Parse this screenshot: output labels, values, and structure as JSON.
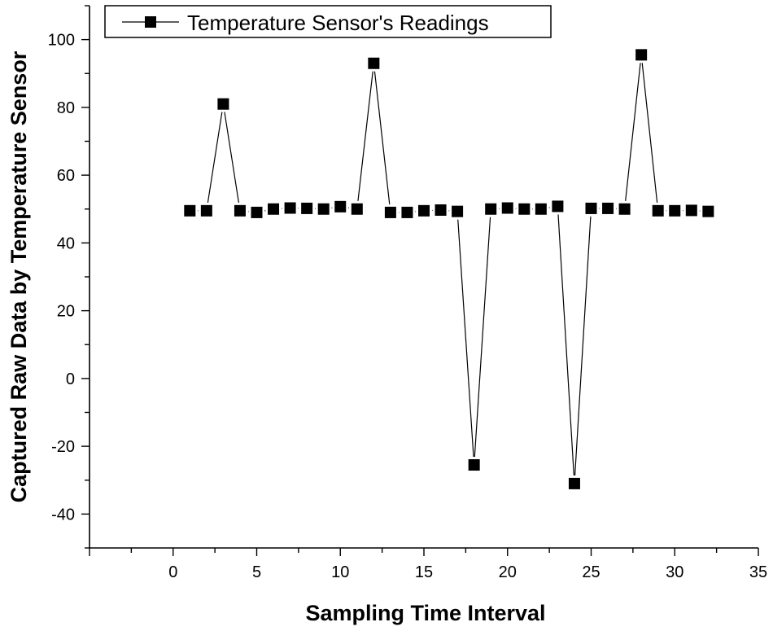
{
  "chart_data": {
    "type": "line",
    "title": "",
    "xlabel": "Sampling Time Interval",
    "ylabel": "Captured Raw Data by Temperature Sensor",
    "xlim": [
      -5,
      35
    ],
    "ylim": [
      -50,
      110
    ],
    "xticks": [
      0,
      5,
      10,
      15,
      20,
      25,
      30,
      35
    ],
    "yticks": [
      -40,
      -20,
      0,
      20,
      40,
      60,
      80,
      100
    ],
    "xtick_labels": [
      "0",
      "5",
      "10",
      "15",
      "20",
      "25",
      "30",
      "35"
    ],
    "ytick_labels": [
      "-40",
      "-20",
      "0",
      "20",
      "40",
      "60",
      "80",
      "100"
    ],
    "grid": false,
    "legend_position": "top-left",
    "marker": "square",
    "color": "#000000",
    "series": [
      {
        "name": "Temperature Sensor's Readings",
        "x": [
          1,
          2,
          3,
          4,
          5,
          6,
          7,
          8,
          9,
          10,
          11,
          12,
          13,
          14,
          15,
          16,
          17,
          18,
          19,
          20,
          21,
          22,
          23,
          24,
          25,
          26,
          27,
          28,
          29,
          30,
          31,
          32
        ],
        "y": [
          49.5,
          49.5,
          81,
          49.5,
          49,
          50,
          50.3,
          50.2,
          50,
          50.7,
          50,
          93,
          49,
          49,
          49.5,
          49.7,
          49.3,
          -25.5,
          50,
          50.3,
          50,
          50,
          50.8,
          -31,
          50.2,
          50.2,
          50,
          95.5,
          49.5,
          49.5,
          49.6,
          49.3
        ]
      }
    ]
  }
}
